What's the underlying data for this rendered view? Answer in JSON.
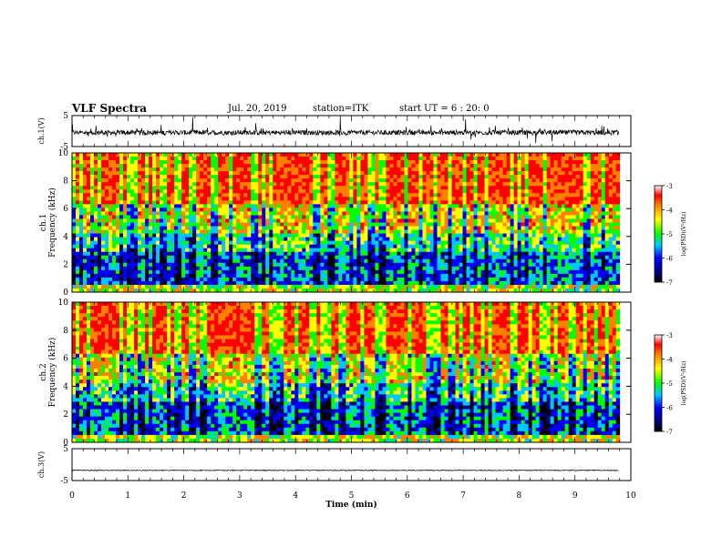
{
  "header": {
    "title": "VLF Spectra",
    "date": "Jul. 20, 2019",
    "station": "station=ITK",
    "start": "start UT =  6 : 20: 0"
  },
  "chart_data": [
    {
      "type": "line",
      "panel": "ch1-waveform",
      "ylabel": "ch.1(V)",
      "ylim": [
        -5,
        5
      ],
      "yticks": [
        "5",
        "-5"
      ],
      "xlim": [
        0,
        10
      ],
      "baseline": -0.5,
      "color": "#000000"
    },
    {
      "type": "heatmap",
      "panel": "ch1-spectrogram",
      "ylabel_line1": "ch.1",
      "ylabel_line2": "Frequency (kHz)",
      "ylim": [
        0,
        10
      ],
      "yticks": [
        "0",
        "2",
        "4",
        "6",
        "8",
        "10"
      ],
      "xlim": [
        0,
        9.8
      ],
      "colorbar": {
        "label": "log(PSD)(V²/Hz)",
        "range": [
          -7,
          -3
        ],
        "ticks": [
          "-3",
          "-4",
          "-5",
          "-6",
          "-7"
        ]
      }
    },
    {
      "type": "heatmap",
      "panel": "ch2-spectrogram",
      "ylabel_line1": "ch.2",
      "ylabel_line2": "Frequency (kHz)",
      "ylim": [
        0,
        10
      ],
      "yticks": [
        "0",
        "2",
        "4",
        "6",
        "8",
        "10"
      ],
      "xlim": [
        0,
        9.8
      ],
      "colorbar": {
        "label": "log(PSD)(V²/Hz)",
        "range": [
          -7,
          -3
        ],
        "ticks": [
          "-3",
          "-4",
          "-5",
          "-6",
          "-7"
        ]
      }
    },
    {
      "type": "line",
      "panel": "ch3-waveform",
      "ylabel": "ch.3(V)",
      "ylim": [
        -5,
        5
      ],
      "yticks": [
        "5",
        "-5"
      ],
      "xlim": [
        0,
        10
      ],
      "baseline": -1.8,
      "color": "#000000",
      "xlabel": "Time (min)",
      "xticks": [
        "0",
        "1",
        "2",
        "3",
        "4",
        "5",
        "6",
        "7",
        "8",
        "9",
        "10"
      ]
    }
  ]
}
